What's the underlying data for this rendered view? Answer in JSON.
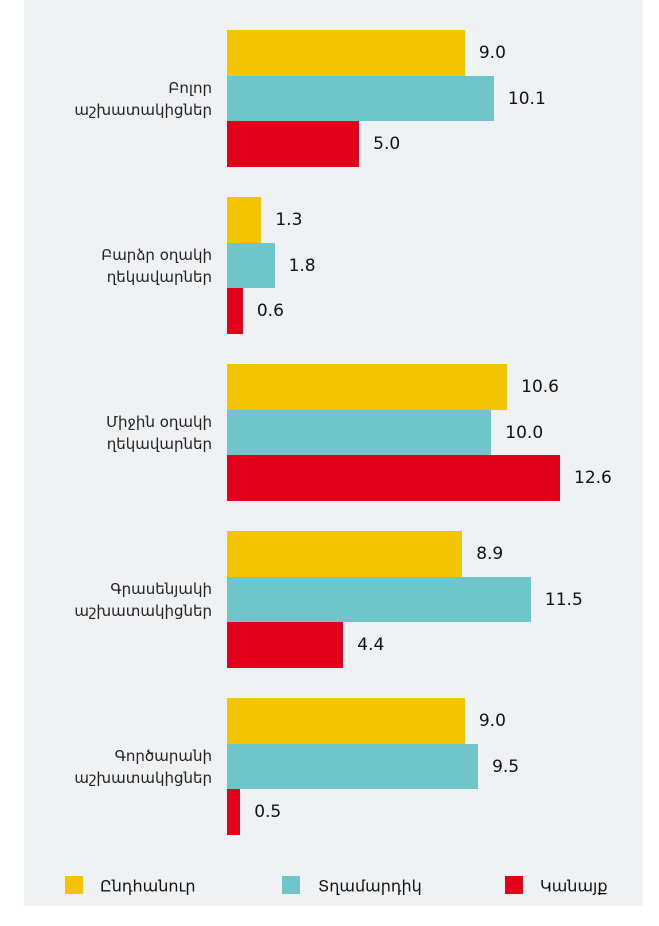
{
  "chart_data": {
    "type": "hbar",
    "categories": [
      "Բոլոր\nաշխատակիցներ",
      "Բարձր օղակի\nղեկավարներ",
      "Միջին օղակի\nղեկավարներ",
      "Գրասենյակի\nաշխատակիցներ",
      "Գործարանի\nաշխատակիցներ"
    ],
    "series": [
      {
        "name": "Ընդհանուր",
        "color": "#f5c400",
        "values": [
          9.0,
          1.3,
          10.6,
          8.9,
          9.0
        ],
        "value_labels": [
          "9.0",
          "1.3",
          "10.6",
          "8.9",
          "9.0"
        ]
      },
      {
        "name": "Տղամարդիկ",
        "color": "#6fc6ca",
        "values": [
          10.1,
          1.8,
          10.0,
          11.5,
          9.5
        ],
        "value_labels": [
          "10.1",
          "1.8",
          "10.0",
          "11.5",
          "9.5"
        ]
      },
      {
        "name": "Կանայք",
        "color": "#e2001a",
        "values": [
          5.0,
          0.6,
          12.6,
          4.4,
          0.5
        ],
        "value_labels": [
          "5.0",
          "0.6",
          "12.6",
          "4.4",
          "0.5"
        ]
      }
    ],
    "legend": "bottom"
  }
}
